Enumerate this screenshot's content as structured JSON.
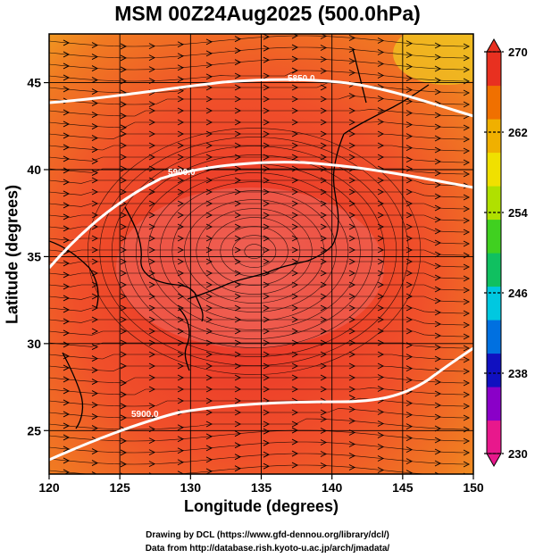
{
  "title": "MSM 00Z24Aug2025 (500.0hPa)",
  "x_axis_label": "Longitude (degrees)",
  "y_axis_label": "Latitude  (degrees)",
  "x_ticks": [
    120,
    125,
    130,
    135,
    140,
    145,
    150
  ],
  "y_ticks": [
    25,
    30,
    35,
    40,
    45
  ],
  "colorbar": {
    "ticks": [
      270,
      262,
      254,
      246,
      238,
      230
    ],
    "range": [
      230,
      270
    ],
    "colors": [
      "#e8188c",
      "#8a00c8",
      "#1010c0",
      "#0070e0",
      "#00c8e0",
      "#10c060",
      "#40d020",
      "#b0e000",
      "#f0e000",
      "#f0b000",
      "#f07000",
      "#e83020"
    ]
  },
  "contours": [
    {
      "label": "5850.0"
    },
    {
      "label": "5900.0"
    },
    {
      "label": "5900.0"
    }
  ],
  "credits": [
    "Drawing by DCL (https://www.gfd-dennou.org/library/dcl/)",
    "Data from http://database.rish.kyoto-u.ac.jp/arch/jmadata/"
  ]
}
